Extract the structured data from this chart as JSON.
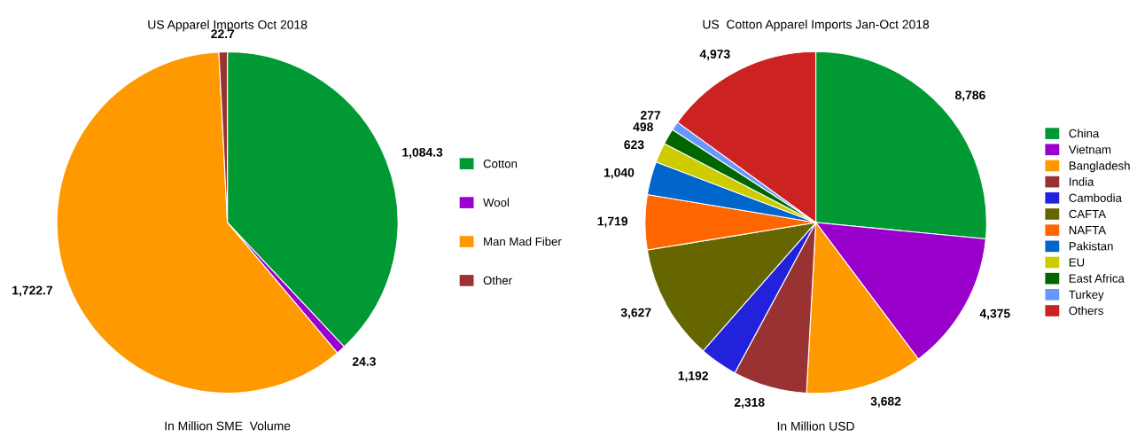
{
  "chart_data": [
    {
      "type": "pie",
      "title": "US Apparel Imports Oct 2018",
      "xlabel": "In Million SME  Volume",
      "categories": [
        "Cotton",
        "Wool",
        "Man Mad Fiber",
        "Other"
      ],
      "values": [
        1084.3,
        24.3,
        1722.7,
        22.7
      ],
      "value_labels": [
        "1,084.3",
        "24.3",
        "1,722.7",
        "22.7"
      ],
      "colors": [
        "#009933",
        "#9900cc",
        "#ff9900",
        "#993333"
      ],
      "legend": "right"
    },
    {
      "type": "pie",
      "title": "US  Cotton Apparel Imports Jan-Oct 2018",
      "xlabel": "In Million USD",
      "categories": [
        "China",
        "Vietnam",
        "Bangladesh",
        "India",
        "Cambodia",
        "CAFTA",
        "NAFTA",
        "Pakistan",
        "EU",
        "East Africa",
        "Turkey",
        "Others"
      ],
      "values": [
        8786,
        4375,
        3682,
        2318,
        1192,
        3627,
        1719,
        1040,
        623,
        498,
        277,
        4973
      ],
      "value_labels": [
        "8,786",
        "4,375",
        "3,682",
        "2,318",
        "1,192",
        "3,627",
        "1,719",
        "1,040",
        "623",
        "498",
        "277",
        "4,973"
      ],
      "colors": [
        "#009933",
        "#9900cc",
        "#ff9900",
        "#993333",
        "#2222dd",
        "#666600",
        "#ff6600",
        "#0066cc",
        "#cccc00",
        "#006600",
        "#6699ff",
        "#cc2222"
      ],
      "legend": "right"
    }
  ]
}
